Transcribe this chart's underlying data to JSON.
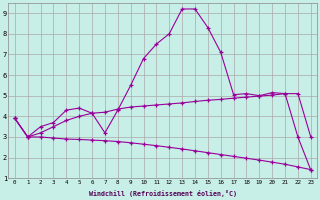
{
  "xlabel": "Windchill (Refroidissement éolien,°C)",
  "bg_color": "#c8eee8",
  "grid_color": "#aaaaaa",
  "line_color": "#990099",
  "xlim": [
    -0.5,
    23.5
  ],
  "ylim": [
    1,
    9.5
  ],
  "series1_x": [
    0,
    1,
    2,
    3,
    4,
    5,
    6,
    7,
    8,
    9,
    10,
    11,
    12,
    13,
    14,
    15,
    16,
    17,
    18,
    19,
    20,
    21,
    22,
    23
  ],
  "series1_y": [
    3.9,
    3.0,
    3.5,
    3.7,
    4.3,
    4.4,
    4.15,
    3.2,
    4.3,
    5.5,
    6.8,
    7.5,
    8.0,
    9.2,
    9.2,
    8.3,
    7.1,
    5.05,
    5.1,
    5.0,
    5.15,
    5.1,
    3.0,
    1.4
  ],
  "series2_x": [
    0,
    1,
    2,
    3,
    4,
    5,
    6,
    7,
    8,
    9,
    10,
    11,
    12,
    13,
    14,
    15,
    16,
    17,
    18,
    19,
    20,
    21,
    22,
    23
  ],
  "series2_y": [
    3.9,
    3.0,
    3.2,
    3.5,
    3.8,
    4.0,
    4.15,
    4.2,
    4.35,
    4.45,
    4.5,
    4.55,
    4.6,
    4.65,
    4.72,
    4.78,
    4.82,
    4.88,
    4.93,
    4.98,
    5.03,
    5.1,
    5.1,
    3.0
  ],
  "series3_x": [
    0,
    1,
    2,
    3,
    4,
    5,
    6,
    7,
    8,
    9,
    10,
    11,
    12,
    13,
    14,
    15,
    16,
    17,
    18,
    19,
    20,
    21,
    22,
    23
  ],
  "series3_y": [
    3.9,
    3.0,
    3.0,
    2.95,
    2.9,
    2.88,
    2.85,
    2.82,
    2.78,
    2.72,
    2.65,
    2.58,
    2.5,
    2.42,
    2.33,
    2.24,
    2.15,
    2.06,
    1.97,
    1.88,
    1.78,
    1.68,
    1.55,
    1.42
  ]
}
